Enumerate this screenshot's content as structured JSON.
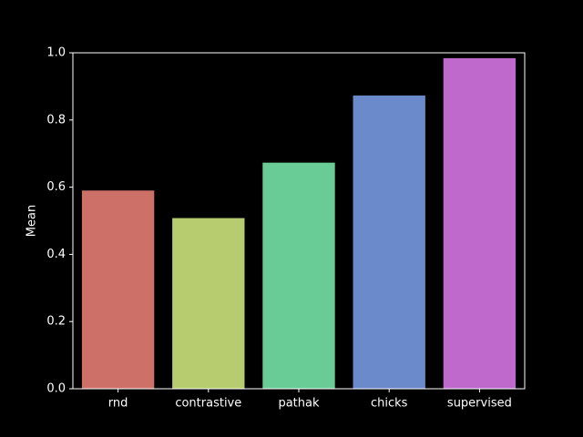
{
  "chart_data": {
    "type": "bar",
    "title": "",
    "xlabel": "",
    "ylabel": "Mean",
    "ylim": [
      0,
      1.0
    ],
    "yticks": [
      "0.0",
      "0.2",
      "0.4",
      "0.6",
      "0.8",
      "1.0"
    ],
    "grid": false,
    "categories": [
      "rnd",
      "contrastive",
      "pathak",
      "chicks",
      "supervised"
    ],
    "values": [
      0.59,
      0.508,
      0.673,
      0.873,
      0.984
    ],
    "colors": [
      "#cc7068",
      "#b6cc6e",
      "#69cc96",
      "#6b8acc",
      "#bf69cc"
    ],
    "axis_color": "#ffffff",
    "background": "#000000"
  }
}
